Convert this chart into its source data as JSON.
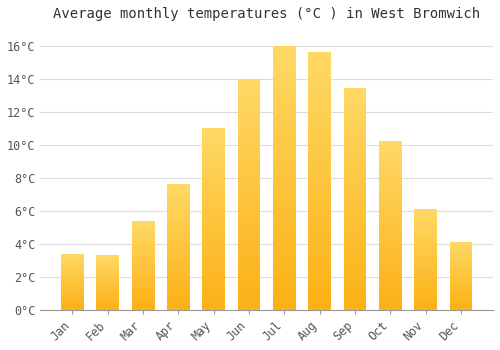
{
  "title": "Average monthly temperatures (°C ) in West Bromwich",
  "months": [
    "Jan",
    "Feb",
    "Mar",
    "Apr",
    "May",
    "Jun",
    "Jul",
    "Aug",
    "Sep",
    "Oct",
    "Nov",
    "Dec"
  ],
  "values": [
    3.4,
    3.3,
    5.4,
    7.6,
    11.0,
    14.0,
    16.0,
    15.6,
    13.4,
    10.2,
    6.1,
    4.1
  ],
  "bar_color": "#FBB116",
  "bar_color_light": "#FFD966",
  "background_color": "#FFFFFF",
  "grid_color": "#DDDDDD",
  "ylim": [
    0,
    17
  ],
  "yticks": [
    0,
    2,
    4,
    6,
    8,
    10,
    12,
    14,
    16
  ],
  "ytick_labels": [
    "0°C",
    "2°C",
    "4°C",
    "6°C",
    "8°C",
    "10°C",
    "12°C",
    "14°C",
    "16°C"
  ],
  "title_fontsize": 10,
  "tick_fontsize": 8.5,
  "font_family": "monospace"
}
